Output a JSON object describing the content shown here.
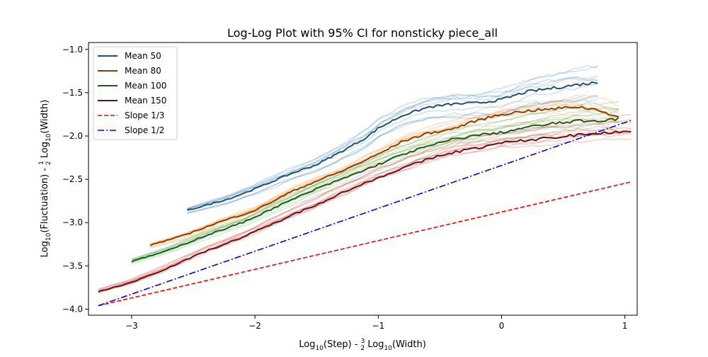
{
  "chart_data": {
    "type": "line",
    "title": "Log-Log Plot with 95% CI for nonsticky piece_all",
    "xlabel": {
      "prefix": "Log",
      "sub1": "10",
      "mid": "(Step) - ",
      "frac_num": "3",
      "frac_den": "2",
      "log2": " Log",
      "sub2": "10",
      "suffix": "(Width)"
    },
    "ylabel": {
      "prefix": "Log",
      "sub1": "10",
      "mid": "(Fluctuation) - ",
      "frac_num": "1",
      "frac_den": "2",
      "log2": " Log",
      "sub2": "10",
      "suffix": "(Width)"
    },
    "xlim": [
      -3.35,
      1.1
    ],
    "ylim": [
      -4.07,
      -0.92
    ],
    "x_ticks": [
      -3,
      -2,
      -1,
      0,
      1
    ],
    "x_tick_labels": [
      "−3",
      "−2",
      "−1",
      "0",
      "1"
    ],
    "y_ticks": [
      -4.0,
      -3.5,
      -3.0,
      -2.5,
      -2.0,
      -1.5,
      -1.0
    ],
    "y_tick_labels": [
      "−4.0",
      "−3.5",
      "−3.0",
      "−2.5",
      "−2.0",
      "−1.5",
      "−1.0"
    ],
    "grid": false,
    "legend_position": "top-left",
    "series": [
      {
        "name": "Mean 50",
        "color": "#1f4e79",
        "band_color": "#1f77b4",
        "x": [
          -2.55,
          -2.2,
          -2.0,
          -1.7,
          -1.5,
          -1.3,
          -1.1,
          -1.0,
          -0.8,
          -0.6,
          -0.4,
          -0.2,
          0.0,
          0.2,
          0.4,
          0.6,
          0.78
        ],
        "y": [
          -2.86,
          -2.72,
          -2.61,
          -2.43,
          -2.33,
          -2.18,
          -2.02,
          -1.91,
          -1.76,
          -1.67,
          -1.63,
          -1.62,
          -1.58,
          -1.49,
          -1.45,
          -1.41,
          -1.38
        ]
      },
      {
        "name": "Mean 80",
        "color": "#8b4000",
        "band_color": "#ff7f0e",
        "x": [
          -2.85,
          -2.6,
          -2.3,
          -2.0,
          -1.7,
          -1.5,
          -1.3,
          -1.0,
          -0.8,
          -0.6,
          -0.4,
          -0.2,
          0.0,
          0.2,
          0.4,
          0.6,
          0.8,
          0.95
        ],
        "y": [
          -3.26,
          -3.16,
          -3.0,
          -2.86,
          -2.64,
          -2.52,
          -2.41,
          -2.21,
          -2.06,
          -1.97,
          -1.92,
          -1.82,
          -1.75,
          -1.71,
          -1.69,
          -1.66,
          -1.7,
          -1.79
        ]
      },
      {
        "name": "Mean 100",
        "color": "#1e5c1e",
        "band_color": "#2ca02c",
        "x": [
          -3.0,
          -2.7,
          -2.4,
          -2.1,
          -1.8,
          -1.5,
          -1.3,
          -1.0,
          -0.8,
          -0.6,
          -0.4,
          -0.2,
          0.0,
          0.2,
          0.4,
          0.6,
          0.8,
          0.95
        ],
        "y": [
          -3.45,
          -3.32,
          -3.15,
          -3.0,
          -2.8,
          -2.61,
          -2.5,
          -2.33,
          -2.21,
          -2.12,
          -2.04,
          -1.99,
          -1.96,
          -1.9,
          -1.86,
          -1.83,
          -1.82,
          -1.8
        ]
      },
      {
        "name": "Mean 150",
        "color": "#6b1212",
        "band_color": "#d62728",
        "x": [
          -3.27,
          -3.0,
          -2.7,
          -2.4,
          -2.1,
          -1.8,
          -1.5,
          -1.3,
          -1.0,
          -0.8,
          -0.6,
          -0.4,
          -0.2,
          0.0,
          0.2,
          0.4,
          0.6,
          0.8,
          1.05
        ],
        "y": [
          -3.8,
          -3.69,
          -3.52,
          -3.33,
          -3.17,
          -2.98,
          -2.79,
          -2.66,
          -2.48,
          -2.37,
          -2.27,
          -2.19,
          -2.14,
          -2.08,
          -2.05,
          -2.02,
          -1.99,
          -1.96,
          -1.95
        ]
      }
    ],
    "reference_lines": [
      {
        "name": "Slope 1/3",
        "color": "#ff0000",
        "style": "dashed",
        "x": [
          -3.27,
          1.05
        ],
        "y": [
          -3.96,
          -2.53
        ]
      },
      {
        "name": "Slope 1/2",
        "color": "#0000ff",
        "style": "dashdot",
        "x": [
          -3.27,
          1.05
        ],
        "y": [
          -3.96,
          -1.82
        ]
      }
    ]
  }
}
